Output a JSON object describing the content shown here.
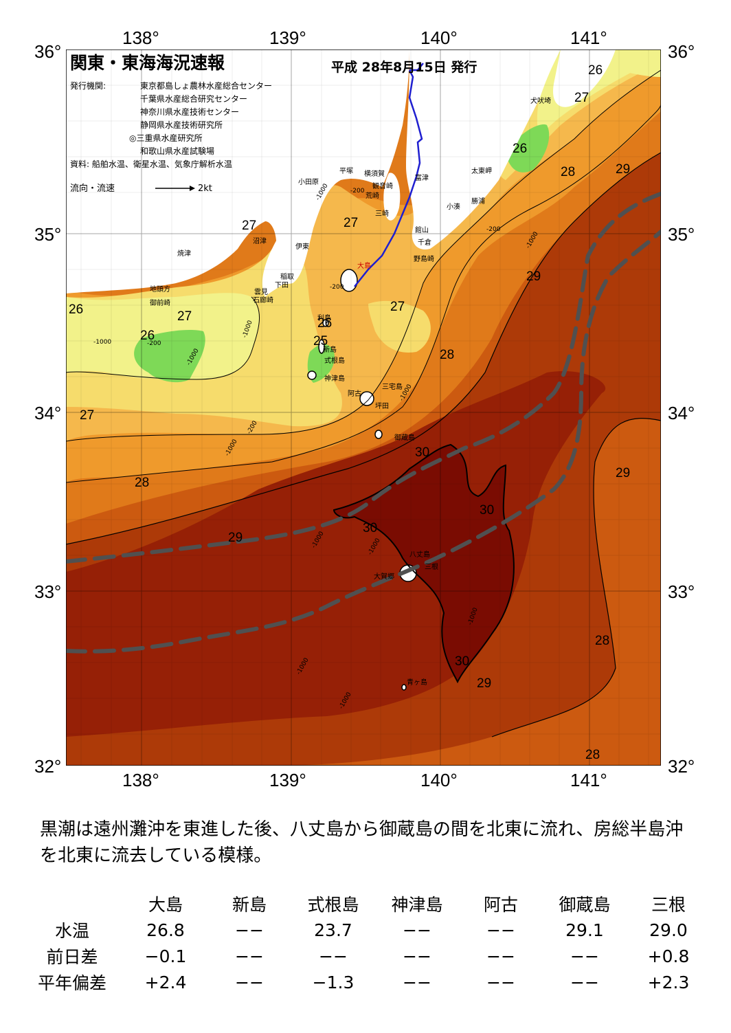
{
  "map": {
    "title": "関東・東海海況速報",
    "issue_date": "平成 28年8月15日 発行",
    "issuer_label": "発行機関:",
    "issuers": [
      "東京都島しょ農林水産総合センター",
      "千葉県水産総合研究センター",
      "神奈川県水産技術センター",
      "静岡県水産技術研究所",
      "◎三重県水産研究所",
      "和歌山県水産試験場"
    ],
    "source": "資料: 船舶水温、衛星水温、気象庁解析水温",
    "flow_legend_label": "流向・流速",
    "flow_legend_value": "2kt",
    "longitude_labels": [
      "138°",
      "139°",
      "140°",
      "141°"
    ],
    "latitude_labels": [
      "36°",
      "35°",
      "34°",
      "33°",
      "32°"
    ],
    "place_names": [
      "小田原",
      "平塚",
      "横須賀",
      "観音崎",
      "荒崎",
      "三崎",
      "富津",
      "館山",
      "千倉",
      "野島崎",
      "太東岬",
      "勝浦",
      "小湊",
      "犬吠埼",
      "沼津",
      "伊東",
      "焼津",
      "稲取",
      "下田",
      "雲見",
      "石廊崎",
      "地頭方",
      "御前崎",
      "大島",
      "利島",
      "新島",
      "式根島",
      "神津島",
      "三宅島",
      "阿古",
      "坪田",
      "御蔵島",
      "八丈島",
      "三根",
      "大賀郷",
      "青ヶ島"
    ],
    "isotherm_labels": [
      "25",
      "26",
      "27",
      "28",
      "29",
      "30"
    ],
    "depth_labels": [
      "-200",
      "-1000"
    ],
    "colors": {
      "t25": "#7ed957",
      "t26": "#f2f28a",
      "t265": "#f6dc6c",
      "t27": "#f5b84c",
      "t275": "#ef9a2c",
      "t28": "#e07a1a",
      "t285": "#cc5a10",
      "t29": "#ad3a08",
      "t295": "#962006",
      "t30": "#7a0c02",
      "land": "#ffffff",
      "kuroshio_axis": "#505050",
      "ship_track": "#1f1fd0"
    }
  },
  "caption": "黒潮は遠州灘沖を東進した後、八丈島から御蔵島の間を北東に流れ、房総半島沖を北東に流去している模様。",
  "table": {
    "columns": [
      "大島",
      "新島",
      "式根島",
      "神津島",
      "阿古",
      "御蔵島",
      "三根"
    ],
    "rows": [
      {
        "label": "水温",
        "values": [
          "26.8",
          "−−",
          "23.7",
          "−−",
          "−−",
          "29.1",
          "29.0"
        ]
      },
      {
        "label": "前日差",
        "values": [
          "−0.1",
          "−−",
          "−−",
          "−−",
          "−−",
          "−−",
          "+0.8"
        ]
      },
      {
        "label": "平年偏差",
        "values": [
          "+2.4",
          "−−",
          "−1.3",
          "−−",
          "−−",
          "−−",
          "+2.3"
        ]
      }
    ]
  }
}
